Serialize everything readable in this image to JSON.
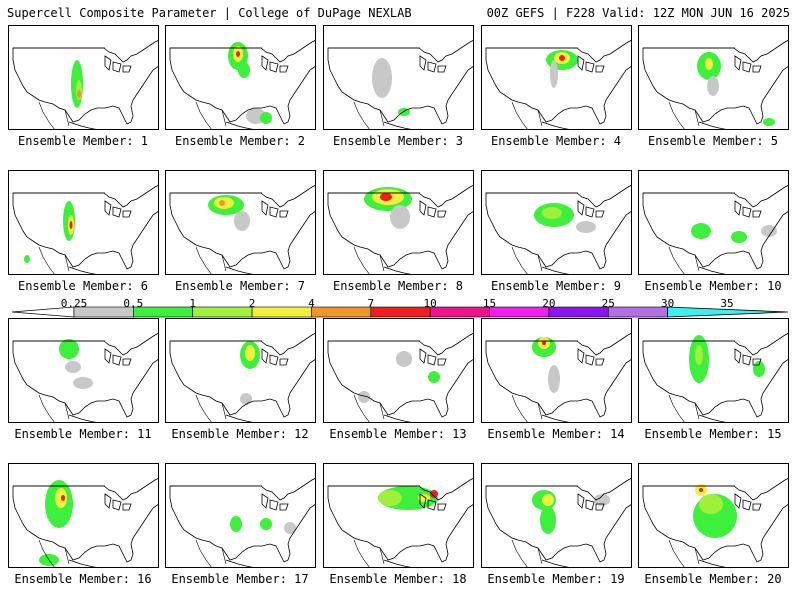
{
  "header": {
    "title_left": "Supercell Composite Parameter | College of DuPage NEXLAB",
    "title_right": "00Z GEFS | F228 Valid: 12Z MON JUN 16 2025"
  },
  "panels": [
    {
      "label": "Ensemble Member: 1"
    },
    {
      "label": "Ensemble Member: 2"
    },
    {
      "label": "Ensemble Member: 3"
    },
    {
      "label": "Ensemble Member: 4"
    },
    {
      "label": "Ensemble Member: 5"
    },
    {
      "label": "Ensemble Member: 6"
    },
    {
      "label": "Ensemble Member: 7"
    },
    {
      "label": "Ensemble Member: 8"
    },
    {
      "label": "Ensemble Member: 9"
    },
    {
      "label": "Ensemble Member: 10"
    },
    {
      "label": "Ensemble Member: 11"
    },
    {
      "label": "Ensemble Member: 12"
    },
    {
      "label": "Ensemble Member: 13"
    },
    {
      "label": "Ensemble Member: 14"
    },
    {
      "label": "Ensemble Member: 15"
    },
    {
      "label": "Ensemble Member: 16"
    },
    {
      "label": "Ensemble Member: 17"
    },
    {
      "label": "Ensemble Member: 18"
    },
    {
      "label": "Ensemble Member: 19"
    },
    {
      "label": "Ensemble Member: 20"
    }
  ],
  "colorbar": {
    "labels": [
      "0.25",
      "0.5",
      "1",
      "2",
      "4",
      "7",
      "10",
      "15",
      "20",
      "25",
      "30",
      "35"
    ],
    "colors": [
      "#c8c8c8",
      "#3cf03c",
      "#a0f03c",
      "#f0f03c",
      "#f09628",
      "#f01e1e",
      "#f0148c",
      "#f01ef0",
      "#8c14f0",
      "#b46ee6",
      "#3cf0f0"
    ]
  }
}
